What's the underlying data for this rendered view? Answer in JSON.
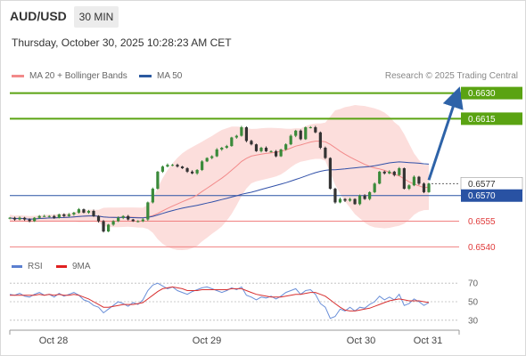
{
  "header": {
    "symbol": "AUD/USD",
    "timeframe": "30 MIN",
    "datetime": "Thursday, October 30, 2025 10:28:23 AM CET"
  },
  "legend": {
    "ma20_label": "MA 20 + Bollinger Bands",
    "ma50_label": "MA 50",
    "research": "Research © 2025 Trading Central"
  },
  "rsi_legend": {
    "rsi_label": "RSI",
    "ma_label": "9MA"
  },
  "colors": {
    "resistance": "#5aa312",
    "support": "#f08080",
    "current": "#2952a3",
    "ma20": "#f28a8a",
    "ma50": "#3050a8",
    "band_fill": "#fbd3d0",
    "candle_up": "#3a8a3a",
    "candle_down": "#333333",
    "arrow": "#2e63a8",
    "rsi": "#6a8fd8",
    "rsi_ma": "#d83030"
  },
  "chart_data": [
    {
      "type": "candlestick",
      "instrument": "AUD/USD",
      "timeframe": "30 MIN",
      "x_tick_labels": [
        "Oct 28",
        "Oct 29",
        "Oct 30",
        "Oct 31"
      ],
      "ylim": [
        6.536,
        6.635
      ],
      "levels": [
        {
          "value": "0.6630",
          "kind": "resistance"
        },
        {
          "value": "0.6615",
          "kind": "resistance"
        },
        {
          "value": "0.6577",
          "kind": "current-price"
        },
        {
          "value": "0.6570",
          "kind": "pivot"
        },
        {
          "value": "0.6555",
          "kind": "support"
        },
        {
          "value": "0.6540",
          "kind": "support"
        }
      ],
      "close_series": [
        0.6557,
        0.6556,
        0.6557,
        0.6556,
        0.6555,
        0.6557,
        0.6558,
        0.6558,
        0.6558,
        0.6557,
        0.6559,
        0.6558,
        0.6559,
        0.656,
        0.6562,
        0.656,
        0.6561,
        0.6558,
        0.6555,
        0.6549,
        0.6553,
        0.6555,
        0.6557,
        0.6558,
        0.6556,
        0.6555,
        0.6555,
        0.6556,
        0.6566,
        0.6574,
        0.6584,
        0.6587,
        0.6588,
        0.6588,
        0.6587,
        0.6586,
        0.6584,
        0.6583,
        0.6585,
        0.659,
        0.6592,
        0.6593,
        0.6597,
        0.6598,
        0.6599,
        0.6604,
        0.6605,
        0.661,
        0.6602,
        0.66,
        0.6596,
        0.6598,
        0.6596,
        0.6596,
        0.6593,
        0.6597,
        0.66,
        0.6605,
        0.6608,
        0.6603,
        0.661,
        0.661,
        0.6607,
        0.6598,
        0.6592,
        0.6574,
        0.6566,
        0.6568,
        0.6567,
        0.6568,
        0.6565,
        0.657,
        0.6568,
        0.6572,
        0.6577,
        0.6584,
        0.6583,
        0.6584,
        0.6582,
        0.6586,
        0.6574,
        0.6576,
        0.6581,
        0.6577,
        0.6572,
        0.6577
      ],
      "ma20_last": 0.6582,
      "ma50_last": 0.6585,
      "projection_target": "0.6630"
    },
    {
      "type": "line",
      "name": "RSI",
      "ylim": [
        25,
        75
      ],
      "y_tick_labels": [
        "70",
        "50",
        "30"
      ],
      "series": [
        {
          "name": "RSI",
          "values": [
            58,
            57,
            59,
            56,
            55,
            58,
            60,
            57,
            58,
            55,
            59,
            56,
            58,
            60,
            57,
            52,
            50,
            46,
            44,
            38,
            42,
            46,
            50,
            48,
            45,
            49,
            47,
            52,
            62,
            68,
            70,
            67,
            64,
            66,
            62,
            60,
            58,
            61,
            63,
            65,
            66,
            64,
            62,
            60,
            62,
            65,
            63,
            66,
            57,
            55,
            52,
            55,
            54,
            56,
            53,
            56,
            60,
            62,
            64,
            58,
            62,
            63,
            58,
            48,
            44,
            32,
            34,
            42,
            40,
            44,
            40,
            44,
            43,
            47,
            50,
            56,
            52,
            55,
            52,
            58,
            46,
            48,
            53,
            50,
            46,
            49
          ]
        },
        {
          "name": "9MA",
          "values": [
            57,
            57,
            57,
            57,
            57,
            57,
            58,
            57,
            58,
            57,
            58,
            57,
            57,
            58,
            57,
            55,
            53,
            50,
            47,
            44,
            44,
            45,
            46,
            47,
            47,
            47,
            48,
            49,
            53,
            57,
            61,
            64,
            65,
            66,
            65,
            64,
            62,
            62,
            62,
            63,
            63,
            63,
            63,
            63,
            63,
            64,
            64,
            64,
            62,
            60,
            58,
            57,
            56,
            55,
            55,
            55,
            56,
            57,
            58,
            58,
            59,
            60,
            60,
            58,
            56,
            52,
            48,
            44,
            41,
            40,
            40,
            41,
            42,
            43,
            45,
            47,
            49,
            51,
            52,
            53,
            52,
            51,
            51,
            51,
            50,
            49
          ]
        }
      ]
    }
  ]
}
